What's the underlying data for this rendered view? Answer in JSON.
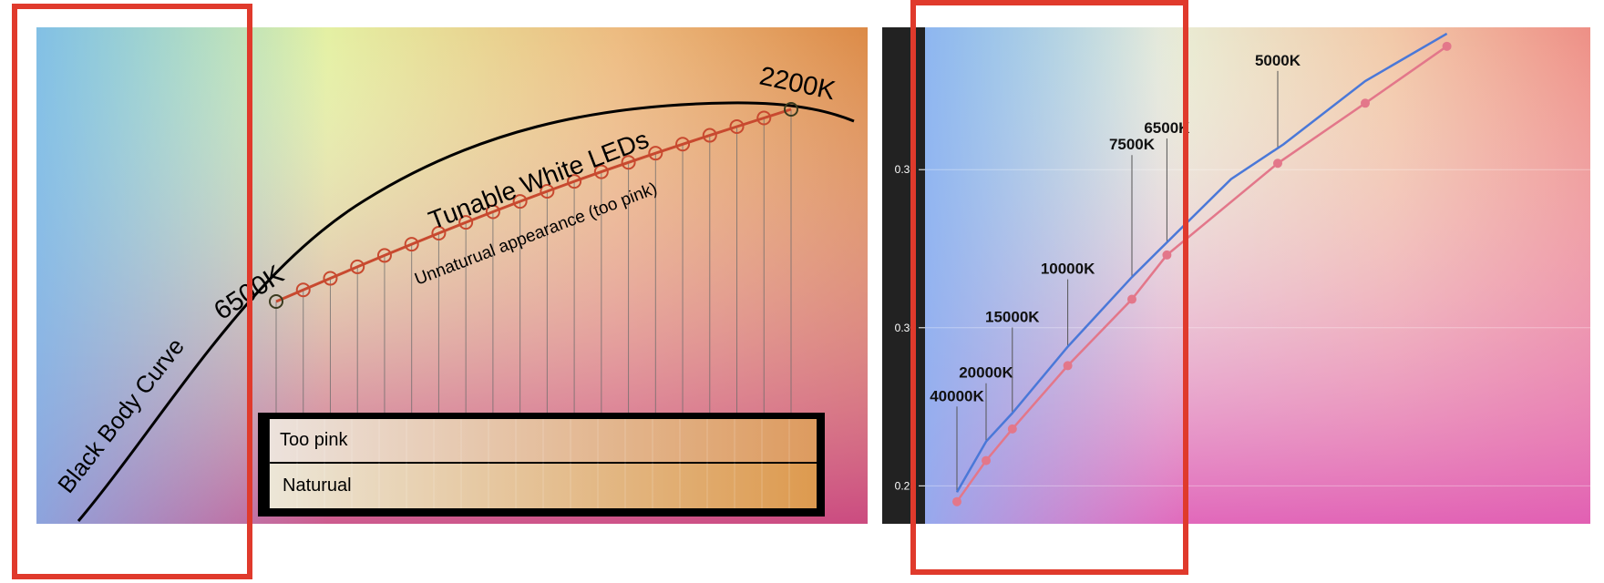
{
  "chart_data": [
    {
      "type": "line",
      "title": "",
      "annotations": {
        "curve_label": "Black Body Curve",
        "start_label": "6500K",
        "end_label": "2200K",
        "series_label": "Tunable White LEDs",
        "series_note": "Unnaturual appearance (too pink)"
      },
      "blackbody_curve": {
        "x": [
          0.05,
          0.2,
          0.4,
          0.6,
          0.8,
          1.0
        ],
        "y": [
          0.0,
          0.45,
          0.78,
          0.94,
          0.99,
          0.96
        ]
      },
      "led_points": 20,
      "swatch_rows": [
        {
          "label": "Too pink",
          "from": "#ece2dc",
          "to": "#dd9b5f"
        },
        {
          "label": "Naturual",
          "from": "#ece6d7",
          "to": "#dd9a4f"
        }
      ],
      "colors": {
        "blackbody": "#000000",
        "led": "#c8492f"
      }
    },
    {
      "type": "line",
      "title": "",
      "y_ticks": [
        "0.35",
        "0.30",
        "0.25"
      ],
      "ylim": [
        0.238,
        0.395
      ],
      "series": [
        {
          "color": "#4a78d8",
          "x": [
            0.0,
            0.05,
            0.095,
            0.19,
            0.3,
            0.36,
            0.47,
            0.56,
            0.7,
            0.84
          ],
          "y": [
            0.248,
            0.264,
            0.273,
            0.294,
            0.316,
            0.327,
            0.347,
            0.358,
            0.378,
            0.393
          ]
        },
        {
          "color": "#e3778a",
          "x": [
            0.0,
            0.05,
            0.095,
            0.19,
            0.3,
            0.36,
            0.55,
            0.7,
            0.84
          ],
          "y": [
            0.245,
            0.258,
            0.268,
            0.288,
            0.309,
            0.323,
            0.352,
            0.371,
            0.389
          ]
        }
      ],
      "cct_labels": [
        {
          "text": "40000K",
          "x": 0.0,
          "y": 0.248
        },
        {
          "text": "20000K",
          "x": 0.05,
          "y": 0.264
        },
        {
          "text": "15000K",
          "x": 0.095,
          "y": 0.273
        },
        {
          "text": "10000K",
          "x": 0.19,
          "y": 0.294
        },
        {
          "text": "7500K",
          "x": 0.3,
          "y": 0.316
        },
        {
          "text": "6500K",
          "x": 0.36,
          "y": 0.327
        },
        {
          "text": "5000K",
          "x": 0.55,
          "y": 0.357
        }
      ],
      "highlight_color": "#e03a2c"
    }
  ]
}
